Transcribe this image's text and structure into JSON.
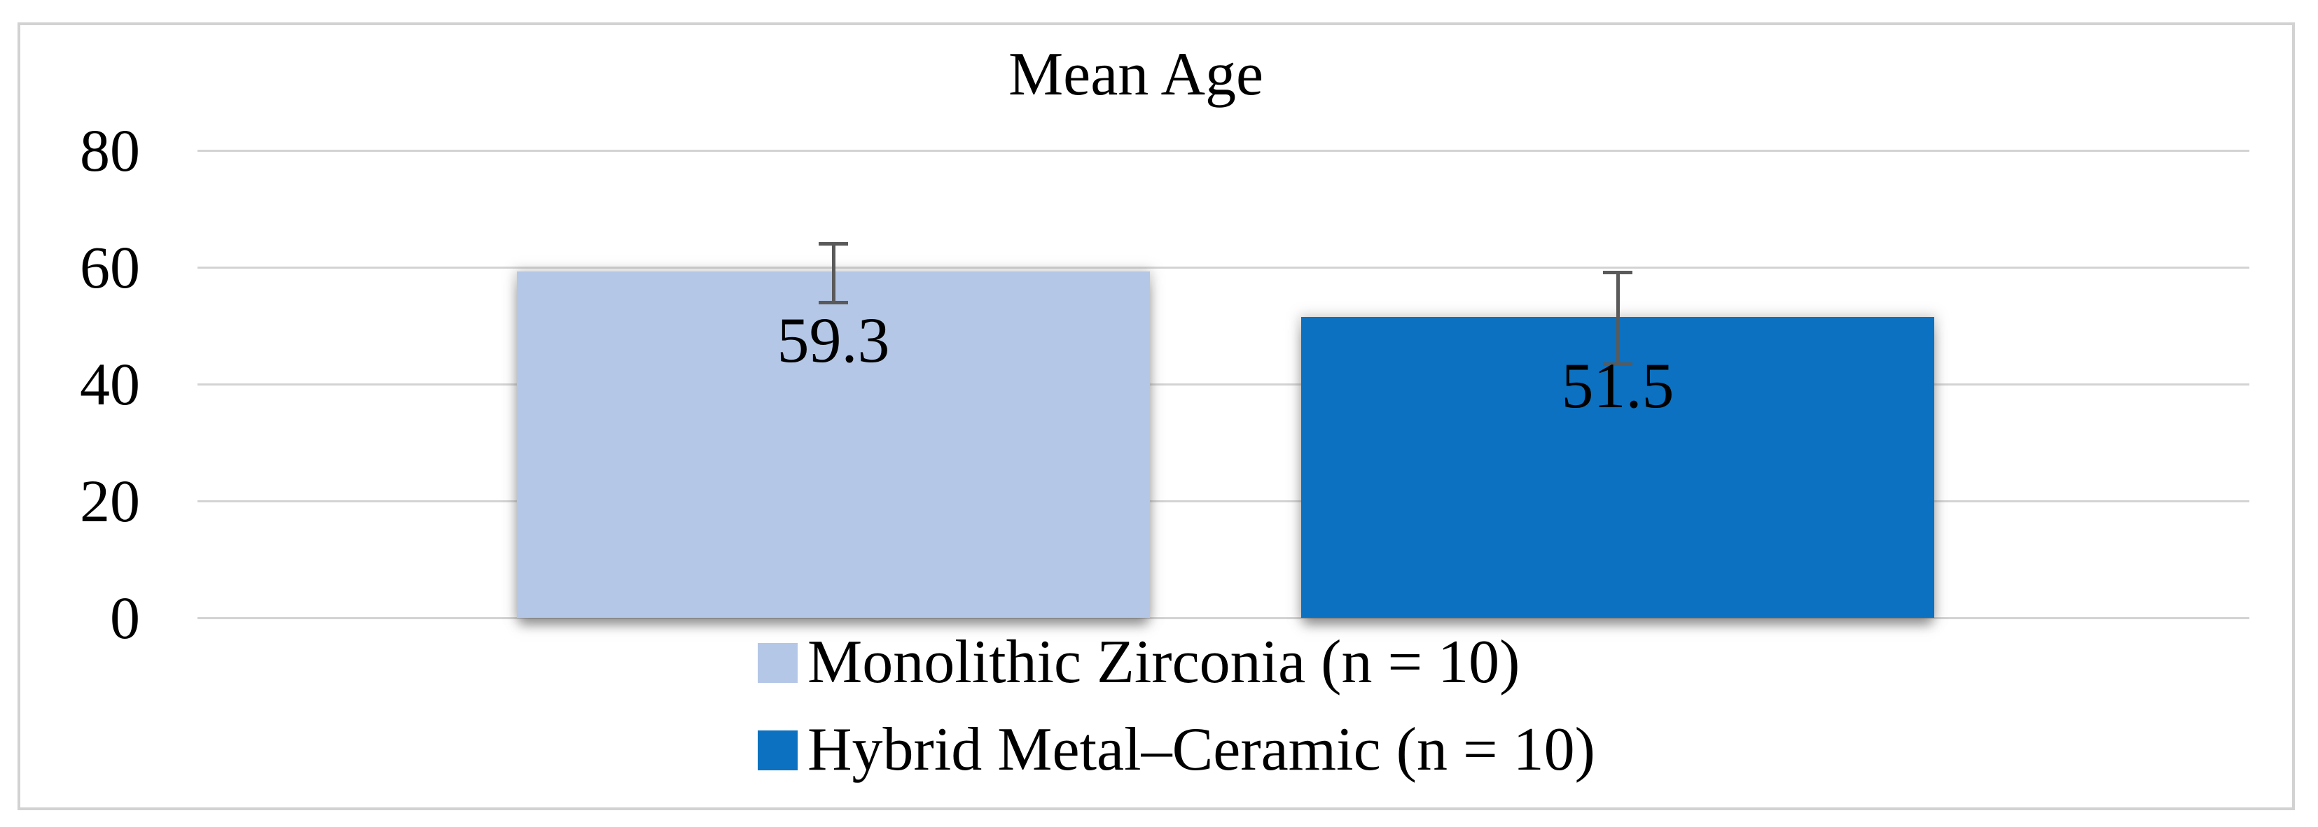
{
  "figure": {
    "title": "Mean Age"
  },
  "chart_data": {
    "type": "bar",
    "title": "Mean Age",
    "categories": [
      ""
    ],
    "series": [
      {
        "name": "Monolithic Zirconia (n = 10)",
        "values": [
          59.3
        ],
        "data_label": "59.3",
        "color": "#B4C7E7",
        "error_bar": {
          "plus": 4.6,
          "minus": 5.4
        }
      },
      {
        "name": "Hybrid Metal–Ceramic (n = 10)",
        "values": [
          51.5
        ],
        "data_label": "51.5",
        "color": "#0C71C0",
        "error_bar": {
          "plus": 7.6,
          "minus": 8.1
        }
      }
    ],
    "y_axis": {
      "min": 0,
      "max": 80,
      "tick_interval": 20,
      "ticks": [
        0,
        20,
        40,
        60,
        80
      ]
    },
    "xlabel": "",
    "ylabel": "",
    "grid": true,
    "legend_position": "bottom",
    "colors": {
      "background": "#FFFFFF",
      "chart_border": "#D2D2D2",
      "gridline": "#D3D3D3",
      "error_bar": "#5A5A5A",
      "text": "#000000"
    }
  }
}
